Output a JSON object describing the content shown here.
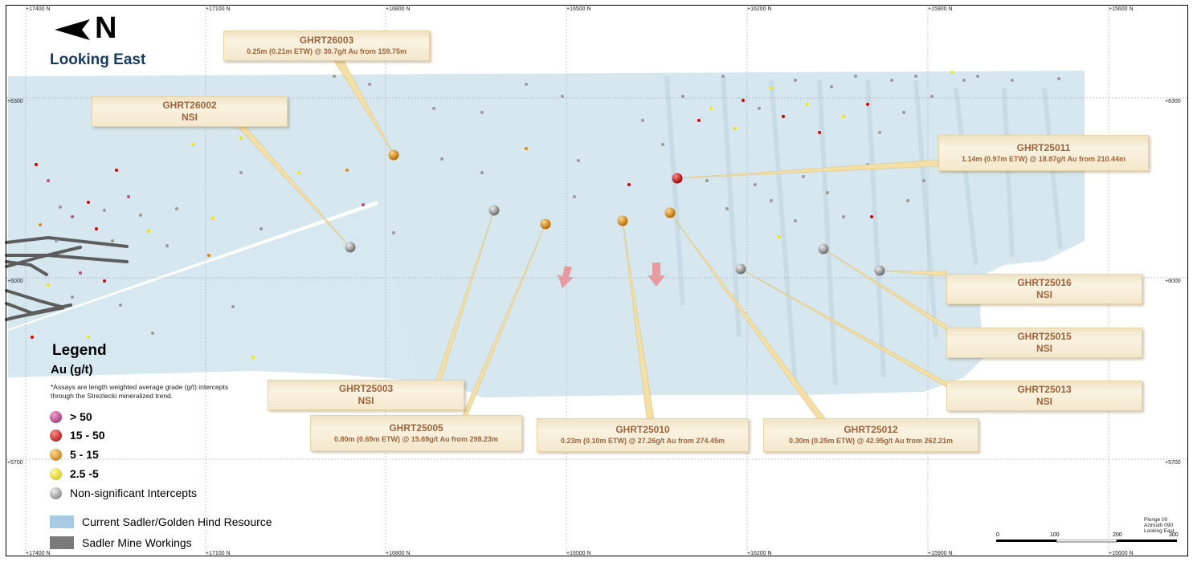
{
  "header": {
    "north_letter": "N",
    "looking": "Looking East"
  },
  "grid": {
    "x_labels": [
      "+17400 N",
      "+17100 N",
      "+16800 N",
      "+16500 N",
      "+16200 N",
      "+15900 N",
      "+15600 N"
    ],
    "y_labels": [
      "+6300",
      "+6000",
      "+5700"
    ]
  },
  "callouts": [
    {
      "hole": "GHRT26003",
      "result": "0.25m (0.21m ETW) @ 30.7g/t Au from 159.75m"
    },
    {
      "hole": "GHRT26002",
      "result": "NSI"
    },
    {
      "hole": "GHRT25011",
      "result": "1.14m (0.97m ETW) @ 18.87g/t Au from 210.44m"
    },
    {
      "hole": "GHRT25016",
      "result": "NSI"
    },
    {
      "hole": "GHRT25015",
      "result": "NSI"
    },
    {
      "hole": "GHRT25013",
      "result": "NSI"
    },
    {
      "hole": "GHRT25003",
      "result": "NSI"
    },
    {
      "hole": "GHRT25005",
      "result": "0.80m (0.69m ETW) @ 15.69g/t Au from 298.23m"
    },
    {
      "hole": "GHRT25010",
      "result": "0.23m (0.10m ETW) @ 27.26g/t Au from 274.45m"
    },
    {
      "hole": "GHRT25012",
      "result": "0.30m (0.25m ETW) @ 42.95g/t Au from 262.21m"
    }
  ],
  "legend": {
    "title": "Legend",
    "unit": "Au (g/t)",
    "note": "*Assays are length weighted average grade (g/t) intercepts through the Strezlecki mineralized trend.",
    "items": [
      {
        "label": "> 50",
        "color": "#b0407a"
      },
      {
        "label": "15 - 50",
        "color": "#e00000"
      },
      {
        "label": "5 - 15",
        "color": "#e08a00"
      },
      {
        "label": "2.5 -5",
        "color": "#f2e600"
      },
      {
        "label": "Non-significant Intercepts",
        "color": "#9a9a9a"
      }
    ],
    "areas": [
      {
        "label": "Current Sadler/Golden Hind Resource",
        "color": "#a9cbe6"
      },
      {
        "label": "Sadler Mine Workings",
        "color": "#7a7a7a"
      }
    ]
  },
  "footer": {
    "plunge": "Plunge 00",
    "azimuth": "Azimuth 090",
    "looking": "Looking East",
    "scale_labels": [
      "0",
      "100",
      "200",
      "300"
    ]
  },
  "colors": {
    "resource": "#d3e6ef",
    "callout_text": "#a0633a",
    "arrow": "#e99aa0"
  }
}
